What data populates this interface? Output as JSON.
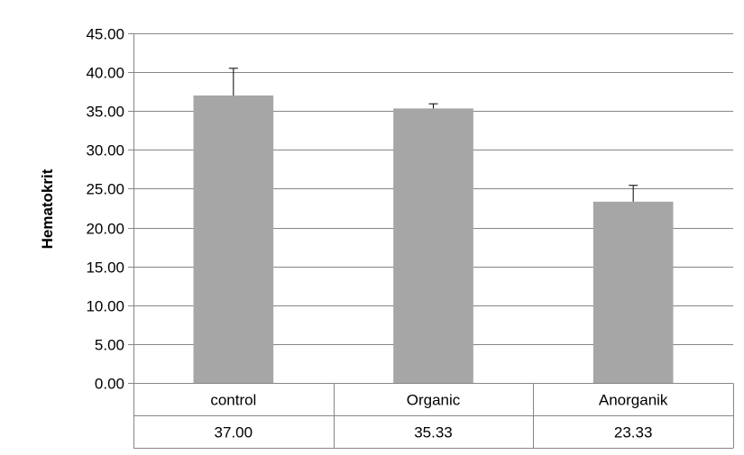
{
  "chart_data": {
    "type": "bar",
    "title": "",
    "xlabel": "",
    "ylabel": "Hematokrit",
    "ylim": [
      0,
      45
    ],
    "ytick_step": 5,
    "ytick_labels": [
      "0.00",
      "5.00",
      "10.00",
      "15.00",
      "20.00",
      "25.00",
      "30.00",
      "35.00",
      "40.00",
      "45.00"
    ],
    "grid": true,
    "legend": "none",
    "categories": [
      "control",
      "Organic",
      "Anorganik"
    ],
    "values": [
      37.0,
      35.33,
      23.33
    ],
    "value_labels": [
      "37.00",
      "35.33",
      "23.33"
    ],
    "error_upper": [
      3.5,
      0.6,
      2.1
    ],
    "bar_color": "#a6a6a6",
    "grid_color": "#868686"
  }
}
